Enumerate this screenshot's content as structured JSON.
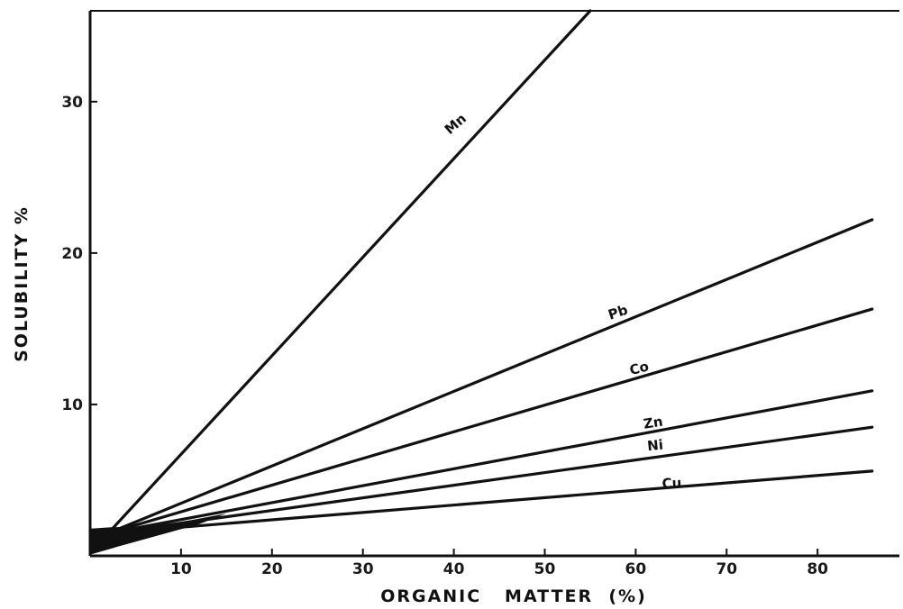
{
  "chart_data": {
    "type": "line",
    "title": "",
    "xlabel": "ORGANIC   MATTER  (%)",
    "ylabel": "SOLUBILITY %",
    "xlim": [
      0,
      89
    ],
    "ylim": [
      0,
      36
    ],
    "xticks": [
      10,
      20,
      30,
      40,
      50,
      60,
      70,
      80
    ],
    "xtick_labels": [
      "10",
      "20",
      "30",
      "40",
      "50",
      "60",
      "70",
      "80"
    ],
    "yticks": [
      10,
      20,
      30
    ],
    "ytick_labels": [
      "10",
      "20",
      "30"
    ],
    "grid": false,
    "legend": "inline labels on lines",
    "series": [
      {
        "name": "Mn",
        "x": [
          2,
          55
        ],
        "y": [
          1.5,
          36
        ]
      },
      {
        "name": "Pb",
        "x": [
          2,
          86
        ],
        "y": [
          1.5,
          22.2
        ]
      },
      {
        "name": "Co",
        "x": [
          2,
          86
        ],
        "y": [
          1.5,
          16.3
        ]
      },
      {
        "name": "Zn",
        "x": [
          2,
          86
        ],
        "y": [
          1.5,
          10.9
        ]
      },
      {
        "name": "Ni",
        "x": [
          2,
          86
        ],
        "y": [
          1.5,
          8.5
        ]
      },
      {
        "name": "Cu",
        "x": [
          2,
          86
        ],
        "y": [
          1.5,
          5.6
        ]
      }
    ],
    "line_color": "#111111"
  }
}
